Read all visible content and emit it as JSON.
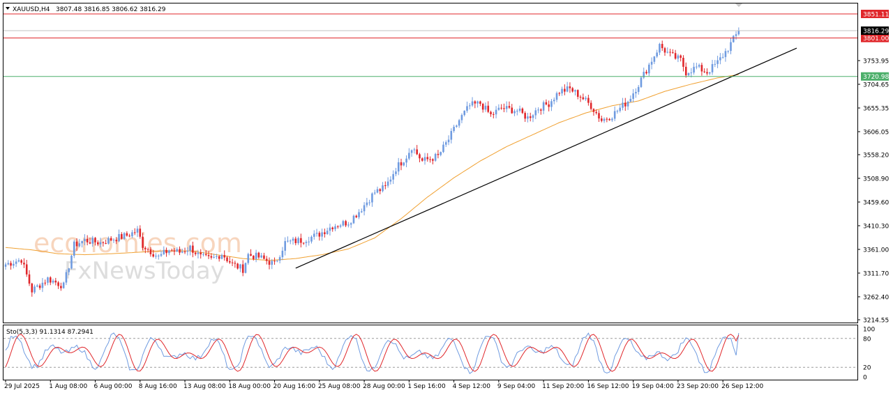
{
  "header": {
    "symbol": "XAUUSD,H4",
    "ohlc": "3807.48 3816.85 3806.62 3816.29"
  },
  "watermark": {
    "line1": "economies.com",
    "line2": "FxNewsToday"
  },
  "colors": {
    "bull_candle": "#6f9be0",
    "bear_candle": "#e0262a",
    "ma_line": "#f0a030",
    "trendline": "#000000",
    "resistance_line": "#e0262a",
    "support_line": "#4caf6a",
    "stoch_main": "#6f9be0",
    "stoch_signal": "#e0262a",
    "price_tag": "#000000"
  },
  "price_axis": {
    "ticks": [
      "3753.95",
      "3704.65",
      "3655.35",
      "3606.05",
      "3558.20",
      "3508.90",
      "3459.60",
      "3410.30",
      "3361.00",
      "3311.70",
      "3262.40",
      "3214.55"
    ],
    "current_price": "3816.29"
  },
  "levels": {
    "resistance_upper": "3851.11",
    "resistance_lower": "3801.00",
    "support": "3720.98"
  },
  "stochastic": {
    "label": "Sto(5,3,3) 91.1314 87.2941",
    "ticks": [
      "100",
      "80",
      "20",
      "0"
    ]
  },
  "time_axis": {
    "labels": [
      "29 Jul 2025",
      "1 Aug 08:00",
      "6 Aug 00:00",
      "8 Aug 16:00",
      "13 Aug 08:00",
      "18 Aug 00:00",
      "20 Aug 16:00",
      "25 Aug 08:00",
      "28 Aug 00:00",
      "1 Sep 16:00",
      "4 Sep 12:00",
      "9 Sep 04:00",
      "11 Sep 20:00",
      "16 Sep 12:00",
      "19 Sep 04:00",
      "23 Sep 20:00",
      "26 Sep 12:00"
    ]
  },
  "chart_data": {
    "type": "candlestick",
    "symbol": "XAUUSD",
    "timeframe": "H4",
    "ylim": [
      3214.55,
      3851.11
    ],
    "close_path": [
      [
        0,
        3330
      ],
      [
        6,
        3340
      ],
      [
        10,
        3275
      ],
      [
        16,
        3300
      ],
      [
        22,
        3285
      ],
      [
        26,
        3370
      ],
      [
        30,
        3380
      ],
      [
        36,
        3375
      ],
      [
        40,
        3382
      ],
      [
        46,
        3390
      ],
      [
        50,
        3400
      ],
      [
        52,
        3370
      ],
      [
        58,
        3345
      ],
      [
        62,
        3360
      ],
      [
        66,
        3355
      ],
      [
        70,
        3365
      ],
      [
        74,
        3345
      ],
      [
        78,
        3340
      ],
      [
        82,
        3352
      ],
      [
        86,
        3330
      ],
      [
        90,
        3320
      ],
      [
        92,
        3350
      ],
      [
        96,
        3345
      ],
      [
        100,
        3335
      ],
      [
        102,
        3330
      ],
      [
        106,
        3375
      ],
      [
        112,
        3380
      ],
      [
        118,
        3390
      ],
      [
        124,
        3410
      ],
      [
        130,
        3418
      ],
      [
        134,
        3440
      ],
      [
        140,
        3480
      ],
      [
        144,
        3490
      ],
      [
        148,
        3530
      ],
      [
        152,
        3555
      ],
      [
        154,
        3575
      ],
      [
        158,
        3545
      ],
      [
        164,
        3555
      ],
      [
        168,
        3590
      ],
      [
        172,
        3630
      ],
      [
        176,
        3660
      ],
      [
        180,
        3665
      ],
      [
        184,
        3640
      ],
      [
        188,
        3655
      ],
      [
        194,
        3650
      ],
      [
        198,
        3635
      ],
      [
        202,
        3655
      ],
      [
        206,
        3665
      ],
      [
        210,
        3690
      ],
      [
        214,
        3695
      ],
      [
        218,
        3680
      ],
      [
        222,
        3660
      ],
      [
        226,
        3630
      ],
      [
        230,
        3640
      ],
      [
        236,
        3670
      ],
      [
        240,
        3705
      ],
      [
        244,
        3745
      ],
      [
        248,
        3785
      ],
      [
        252,
        3765
      ],
      [
        256,
        3755
      ],
      [
        258,
        3730
      ],
      [
        262,
        3740
      ],
      [
        266,
        3730
      ],
      [
        270,
        3750
      ],
      [
        274,
        3780
      ],
      [
        278,
        3816
      ]
    ],
    "ma_path": [
      [
        0,
        3365
      ],
      [
        10,
        3360
      ],
      [
        20,
        3352
      ],
      [
        30,
        3350
      ],
      [
        40,
        3352
      ],
      [
        50,
        3355
      ],
      [
        60,
        3358
      ],
      [
        70,
        3358
      ],
      [
        80,
        3350
      ],
      [
        90,
        3342
      ],
      [
        100,
        3338
      ],
      [
        110,
        3342
      ],
      [
        120,
        3350
      ],
      [
        130,
        3362
      ],
      [
        140,
        3385
      ],
      [
        150,
        3425
      ],
      [
        160,
        3470
      ],
      [
        170,
        3510
      ],
      [
        180,
        3545
      ],
      [
        190,
        3575
      ],
      [
        200,
        3600
      ],
      [
        210,
        3625
      ],
      [
        220,
        3645
      ],
      [
        230,
        3660
      ],
      [
        240,
        3670
      ],
      [
        250,
        3690
      ],
      [
        260,
        3705
      ],
      [
        270,
        3718
      ],
      [
        278,
        3725
      ]
    ],
    "trendline": [
      [
        110,
        3322
      ],
      [
        300,
        3780
      ]
    ],
    "stochastic": {
      "k_period": 5,
      "d_period": 3,
      "slowing": 3,
      "k_value": 91.1314,
      "d_value": 87.2941,
      "levels": [
        80,
        20
      ],
      "range": [
        0,
        100
      ]
    },
    "time_labels_at_index": [
      0,
      17,
      34,
      51,
      68,
      85,
      102,
      119,
      136,
      153,
      170,
      187,
      204,
      221,
      238,
      255,
      272
    ]
  }
}
